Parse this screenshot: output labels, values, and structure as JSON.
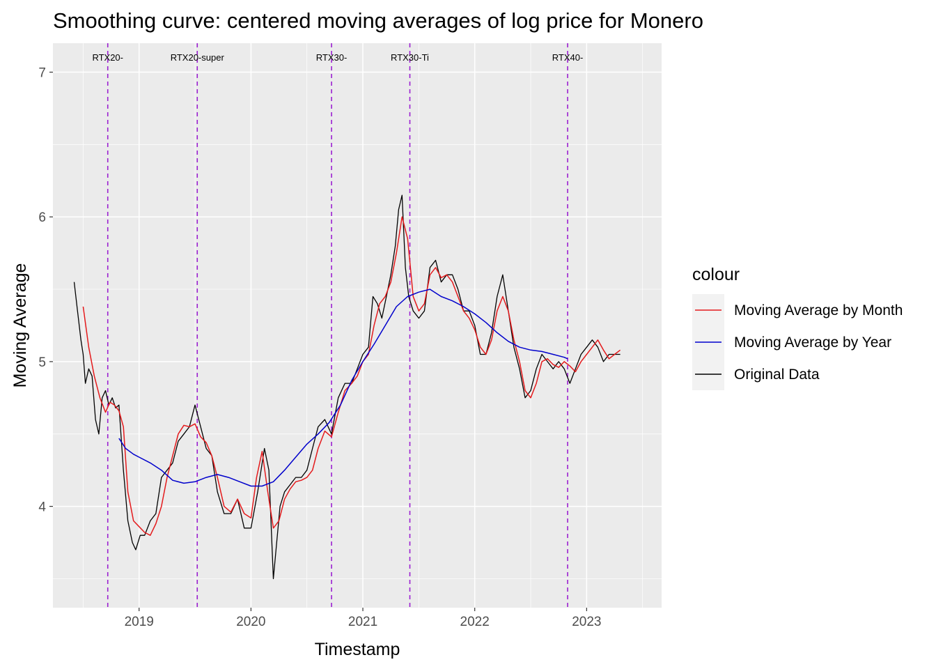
{
  "chart_data": {
    "type": "line",
    "title": "Smoothing curve: centered moving averages of log price for Monero",
    "xlabel": "Timestamp",
    "ylabel": "Moving Average",
    "xlim": [
      2018.23,
      2023.67
    ],
    "ylim": [
      3.3,
      7.2
    ],
    "x_ticks": [
      2019,
      2020,
      2021,
      2022,
      2023
    ],
    "x_tick_labels": [
      "2019",
      "2020",
      "2021",
      "2022",
      "2023"
    ],
    "y_ticks": [
      4,
      5,
      6,
      7
    ],
    "y_tick_labels": [
      "4",
      "5",
      "6",
      "7"
    ],
    "grid": true,
    "legend": {
      "title": "colour",
      "position": "right",
      "entries": [
        {
          "label": "Moving Average by Month",
          "color": "#e41a1c"
        },
        {
          "label": "Moving Average by Year",
          "color": "#0000cc"
        },
        {
          "label": "Original Data",
          "color": "#000000"
        }
      ]
    },
    "events": [
      {
        "x": 2018.72,
        "label": "RTX20-"
      },
      {
        "x": 2019.52,
        "label": "RTX20-super"
      },
      {
        "x": 2020.72,
        "label": "RTX30-"
      },
      {
        "x": 2021.42,
        "label": "RTX30-Ti"
      },
      {
        "x": 2022.83,
        "label": "RTX40-"
      }
    ],
    "event_line_color": "#9b1fd1",
    "series": [
      {
        "name": "Original Data",
        "color": "#000000",
        "x": [
          2018.42,
          2018.45,
          2018.48,
          2018.5,
          2018.52,
          2018.55,
          2018.58,
          2018.61,
          2018.64,
          2018.67,
          2018.7,
          2018.73,
          2018.76,
          2018.79,
          2018.82,
          2018.86,
          2018.9,
          2018.94,
          2018.97,
          2019.01,
          2019.05,
          2019.1,
          2019.15,
          2019.2,
          2019.25,
          2019.3,
          2019.35,
          2019.4,
          2019.45,
          2019.5,
          2019.55,
          2019.6,
          2019.65,
          2019.7,
          2019.76,
          2019.82,
          2019.88,
          2019.94,
          2020.0,
          2020.06,
          2020.12,
          2020.16,
          2020.2,
          2020.23,
          2020.26,
          2020.3,
          2020.35,
          2020.4,
          2020.45,
          2020.5,
          2020.55,
          2020.6,
          2020.66,
          2020.72,
          2020.78,
          2020.84,
          2020.9,
          2020.95,
          2021.0,
          2021.05,
          2021.09,
          2021.13,
          2021.17,
          2021.21,
          2021.25,
          2021.29,
          2021.32,
          2021.35,
          2021.38,
          2021.41,
          2021.45,
          2021.5,
          2021.55,
          2021.6,
          2021.65,
          2021.7,
          2021.75,
          2021.8,
          2021.85,
          2021.9,
          2021.95,
          2022.0,
          2022.05,
          2022.1,
          2022.15,
          2022.2,
          2022.25,
          2022.3,
          2022.35,
          2022.4,
          2022.45,
          2022.5,
          2022.55,
          2022.6,
          2022.65,
          2022.7,
          2022.75,
          2022.8,
          2022.85,
          2022.9,
          2022.95,
          2023.0,
          2023.05,
          2023.1,
          2023.15,
          2023.2,
          2023.25,
          2023.3
        ],
        "values": [
          5.55,
          5.35,
          5.15,
          5.05,
          4.85,
          4.95,
          4.9,
          4.6,
          4.5,
          4.75,
          4.8,
          4.7,
          4.75,
          4.68,
          4.7,
          4.25,
          3.9,
          3.75,
          3.7,
          3.8,
          3.8,
          3.9,
          3.95,
          4.2,
          4.25,
          4.3,
          4.45,
          4.5,
          4.55,
          4.7,
          4.55,
          4.4,
          4.35,
          4.1,
          3.95,
          3.95,
          4.05,
          3.85,
          3.85,
          4.1,
          4.4,
          4.25,
          3.5,
          3.75,
          4.0,
          4.1,
          4.15,
          4.2,
          4.2,
          4.25,
          4.4,
          4.55,
          4.6,
          4.5,
          4.75,
          4.85,
          4.85,
          4.95,
          5.05,
          5.1,
          5.45,
          5.4,
          5.3,
          5.45,
          5.6,
          5.8,
          6.05,
          6.15,
          5.65,
          5.45,
          5.35,
          5.3,
          5.35,
          5.65,
          5.7,
          5.55,
          5.6,
          5.6,
          5.5,
          5.35,
          5.35,
          5.25,
          5.05,
          5.05,
          5.2,
          5.45,
          5.6,
          5.35,
          5.1,
          4.95,
          4.75,
          4.8,
          4.95,
          5.05,
          5.0,
          4.95,
          5.0,
          4.95,
          4.85,
          4.95,
          5.05,
          5.1,
          5.15,
          5.1,
          5.0,
          5.05,
          5.05,
          5.05
        ]
      },
      {
        "name": "Moving Average by Month",
        "color": "#e41a1c",
        "x": [
          2018.5,
          2018.55,
          2018.6,
          2018.65,
          2018.7,
          2018.74,
          2018.78,
          2018.82,
          2018.86,
          2018.9,
          2018.95,
          2019.0,
          2019.05,
          2019.1,
          2019.15,
          2019.2,
          2019.25,
          2019.3,
          2019.35,
          2019.4,
          2019.45,
          2019.5,
          2019.55,
          2019.6,
          2019.65,
          2019.7,
          2019.76,
          2019.82,
          2019.88,
          2019.94,
          2020.0,
          2020.05,
          2020.1,
          2020.15,
          2020.2,
          2020.25,
          2020.3,
          2020.35,
          2020.4,
          2020.45,
          2020.5,
          2020.55,
          2020.6,
          2020.66,
          2020.72,
          2020.78,
          2020.84,
          2020.9,
          2020.95,
          2021.0,
          2021.05,
          2021.1,
          2021.15,
          2021.2,
          2021.25,
          2021.3,
          2021.35,
          2021.4,
          2021.45,
          2021.5,
          2021.55,
          2021.6,
          2021.65,
          2021.7,
          2021.75,
          2021.8,
          2021.85,
          2021.9,
          2021.95,
          2022.0,
          2022.05,
          2022.1,
          2022.15,
          2022.2,
          2022.25,
          2022.3,
          2022.35,
          2022.4,
          2022.45,
          2022.5,
          2022.55,
          2022.6,
          2022.65,
          2022.7,
          2022.75,
          2022.8,
          2022.85,
          2022.9,
          2022.95,
          2023.0,
          2023.05,
          2023.1,
          2023.15,
          2023.2,
          2023.25,
          2023.3
        ],
        "values": [
          5.38,
          5.1,
          4.9,
          4.75,
          4.65,
          4.72,
          4.7,
          4.66,
          4.55,
          4.1,
          3.9,
          3.86,
          3.82,
          3.8,
          3.88,
          4.0,
          4.2,
          4.35,
          4.5,
          4.56,
          4.55,
          4.57,
          4.48,
          4.44,
          4.35,
          4.2,
          4.0,
          3.96,
          4.05,
          3.95,
          3.92,
          4.2,
          4.38,
          4.1,
          3.85,
          3.9,
          4.05,
          4.12,
          4.17,
          4.18,
          4.2,
          4.25,
          4.4,
          4.52,
          4.48,
          4.65,
          4.8,
          4.85,
          4.9,
          5.0,
          5.05,
          5.25,
          5.4,
          5.45,
          5.55,
          5.75,
          6.0,
          5.85,
          5.45,
          5.35,
          5.4,
          5.6,
          5.65,
          5.58,
          5.6,
          5.55,
          5.45,
          5.35,
          5.3,
          5.22,
          5.1,
          5.05,
          5.15,
          5.35,
          5.45,
          5.35,
          5.15,
          5.0,
          4.8,
          4.75,
          4.85,
          5.0,
          5.02,
          4.98,
          4.96,
          5.0,
          4.97,
          4.93,
          5.0,
          5.05,
          5.1,
          5.15,
          5.08,
          5.02,
          5.05,
          5.08
        ]
      },
      {
        "name": "Moving Average by Year",
        "color": "#0000cc",
        "x": [
          2018.82,
          2018.88,
          2018.95,
          2019.0,
          2019.1,
          2019.2,
          2019.3,
          2019.4,
          2019.5,
          2019.6,
          2019.7,
          2019.8,
          2019.9,
          2020.0,
          2020.1,
          2020.2,
          2020.3,
          2020.4,
          2020.5,
          2020.6,
          2020.7,
          2020.8,
          2020.9,
          2021.0,
          2021.1,
          2021.2,
          2021.3,
          2021.4,
          2021.5,
          2021.6,
          2021.7,
          2021.8,
          2021.9,
          2022.0,
          2022.1,
          2022.2,
          2022.3,
          2022.4,
          2022.5,
          2022.6,
          2022.7,
          2022.8,
          2022.83
        ],
        "values": [
          4.47,
          4.4,
          4.36,
          4.34,
          4.3,
          4.25,
          4.18,
          4.16,
          4.17,
          4.2,
          4.22,
          4.2,
          4.17,
          4.14,
          4.14,
          4.17,
          4.25,
          4.34,
          4.43,
          4.5,
          4.58,
          4.7,
          4.87,
          5.0,
          5.12,
          5.25,
          5.38,
          5.45,
          5.48,
          5.5,
          5.45,
          5.42,
          5.38,
          5.33,
          5.27,
          5.2,
          5.14,
          5.1,
          5.08,
          5.07,
          5.05,
          5.03,
          5.02
        ]
      }
    ]
  }
}
